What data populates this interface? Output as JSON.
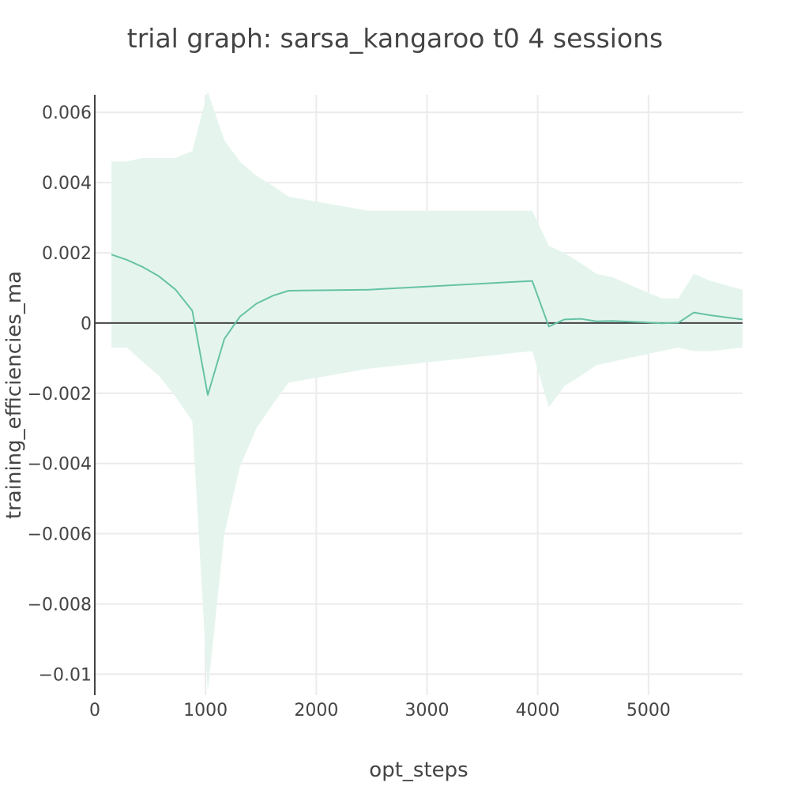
{
  "chart_data": {
    "type": "line",
    "title": "trial graph: sarsa_kangaroo t0 4 sessions",
    "xlabel": "opt_steps",
    "ylabel": "training_efficiencies_ma",
    "xlim": [
      0,
      5850
    ],
    "ylim": [
      -0.0106,
      0.0065
    ],
    "x_ticks": [
      0,
      1000,
      2000,
      3000,
      4000,
      5000
    ],
    "x_tick_labels": [
      "0",
      "1000",
      "2000",
      "3000",
      "4000",
      "5000"
    ],
    "y_ticks": [
      0.006,
      0.004,
      0.002,
      0,
      -0.002,
      -0.004,
      -0.006,
      -0.008,
      -0.01
    ],
    "y_tick_labels": [
      "0.006",
      "0.004",
      "0.002",
      "0",
      "−0.002",
      "−0.004",
      "−0.006",
      "−0.008",
      "−0.01"
    ],
    "grid": true,
    "line_color": "#66c2a5",
    "band_color": "#e5f5ee",
    "series": [
      {
        "x": [
          150,
          290,
          430,
          580,
          730,
          880,
          1020,
          1170,
          1310,
          1460,
          1610,
          1750,
          2470,
          3950,
          4100,
          4240,
          4390,
          4530,
          4680,
          4820,
          4970,
          5120,
          5270,
          5410,
          5560,
          5850
        ],
        "y": [
          0.00195,
          0.0018,
          0.0016,
          0.00133,
          0.00095,
          0.00035,
          -0.00205,
          -0.00045,
          0.00018,
          0.00055,
          0.00078,
          0.00092,
          0.00095,
          0.0012,
          -0.0001,
          0.0001,
          0.00012,
          5e-05,
          6e-05,
          4e-05,
          2e-05,
          -1e-05,
          1e-05,
          0.0003,
          0.00022,
          0.0001
        ],
        "upper": [
          0.0046,
          0.0046,
          0.0047,
          0.0047,
          0.0047,
          0.0049,
          0.0066,
          0.0052,
          0.0046,
          0.0042,
          0.0039,
          0.0036,
          0.0032,
          0.0032,
          0.0022,
          0.002,
          0.0017,
          0.0014,
          0.0013,
          0.0011,
          0.0009,
          0.0007,
          0.0007,
          0.0014,
          0.0012,
          0.00095
        ],
        "lower": [
          -0.0007,
          -0.0007,
          -0.0011,
          -0.0015,
          -0.0021,
          -0.0028,
          -0.0105,
          -0.006,
          -0.0041,
          -0.003,
          -0.0023,
          -0.0017,
          -0.0013,
          -0.0008,
          -0.0024,
          -0.0018,
          -0.0015,
          -0.0012,
          -0.0011,
          -0.001,
          -0.0009,
          -0.0008,
          -0.0007,
          -0.0008,
          -0.0008,
          -0.0007
        ]
      }
    ]
  }
}
